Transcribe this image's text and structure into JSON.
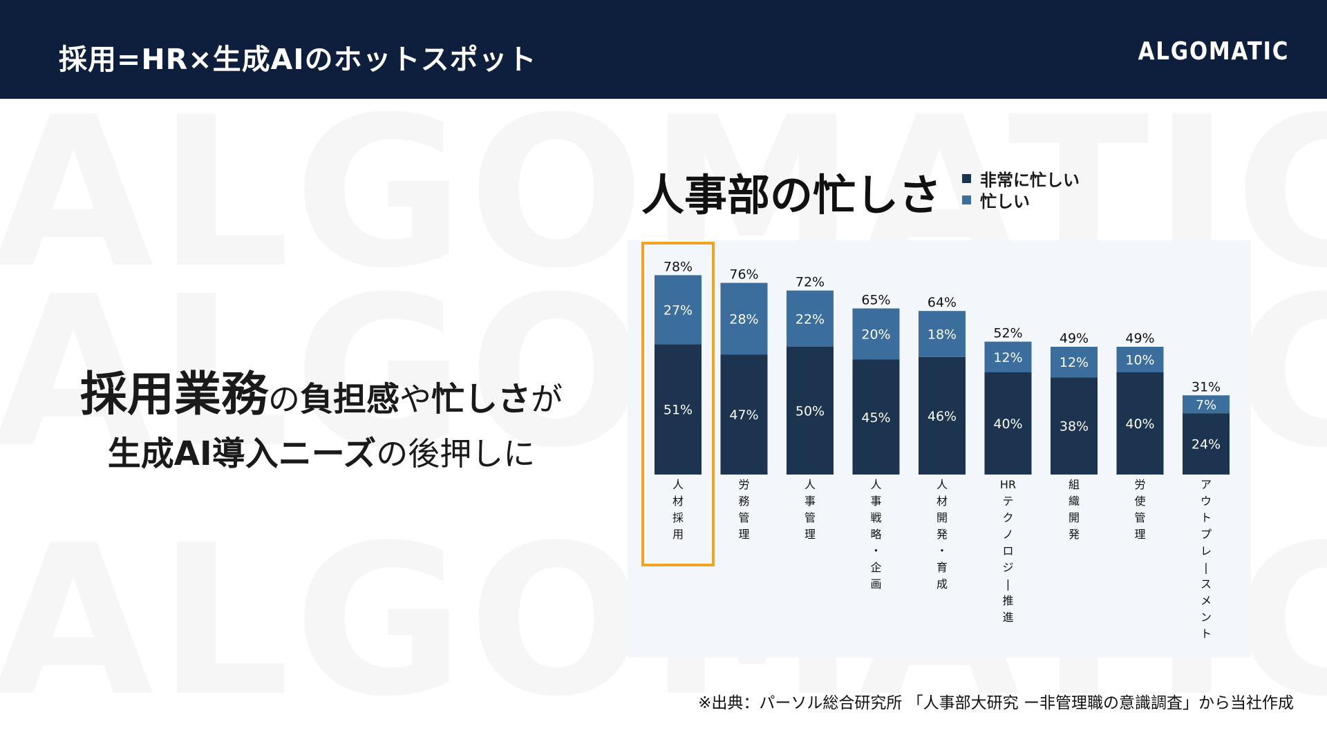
{
  "header": {
    "title": "採用=HR×生成AIのホットスポット",
    "logo": "ALGOMATIC",
    "bg_color": "#0d1f3d"
  },
  "watermark": {
    "text": "ALGOMATIC"
  },
  "headline": {
    "line1_strong": "採用業務",
    "line1_particle": "の",
    "line1_mid": "負担感",
    "line1_rest": "や",
    "line1_tail": "忙しさ",
    "line1_end": "が",
    "line2_strong": "生成AI導入ニーズ",
    "line2_rest": "の後押しに"
  },
  "chart_data": {
    "type": "bar",
    "stacked": true,
    "title": "人事部の忙しさ",
    "categories": [
      "人材採用",
      "労務管理",
      "人事管理",
      "人事戦略・企画",
      "人材開発・育成",
      "HRテクノロジー推進",
      "組織開発",
      "労使管理",
      "アウトプレースメント"
    ],
    "category_labels": [
      [
        "人",
        "材",
        "採",
        "用"
      ],
      [
        "労",
        "務",
        "管",
        "理"
      ],
      [
        "人",
        "事",
        "管",
        "理"
      ],
      [
        "人",
        "事",
        "戦",
        "略",
        "・",
        "企",
        "画"
      ],
      [
        "人",
        "材",
        "開",
        "発",
        "・",
        "育",
        "成"
      ],
      [
        "HR",
        "テ",
        "ク",
        "ノ",
        "ロ",
        "ジ",
        "|",
        "推",
        "進"
      ],
      [
        "組",
        "織",
        "開",
        "発"
      ],
      [
        "労",
        "使",
        "管",
        "理"
      ],
      [
        "ア",
        "ウ",
        "ト",
        "プ",
        "レ",
        "|",
        "ス",
        "メ",
        "ン",
        "ト"
      ]
    ],
    "series": [
      {
        "name": "非常に忙しい",
        "color": "#1c3450",
        "values": [
          51,
          47,
          50,
          45,
          46,
          40,
          38,
          40,
          24
        ]
      },
      {
        "name": "忙しい",
        "color": "#3b6e9c",
        "values": [
          27,
          28,
          22,
          20,
          18,
          12,
          12,
          10,
          7
        ]
      }
    ],
    "totals": [
      78,
      76,
      72,
      65,
      64,
      52,
      49,
      49,
      31
    ],
    "value_suffix": "%",
    "ylim": [
      0,
      80
    ],
    "highlight_category": "人材採用",
    "highlight_color": "#f0a31f",
    "background": "#f3f6fa"
  },
  "source_note": "※出典：パーソル総合研究所 「人事部大研究 ー非管理職の意識調査」から当社作成"
}
